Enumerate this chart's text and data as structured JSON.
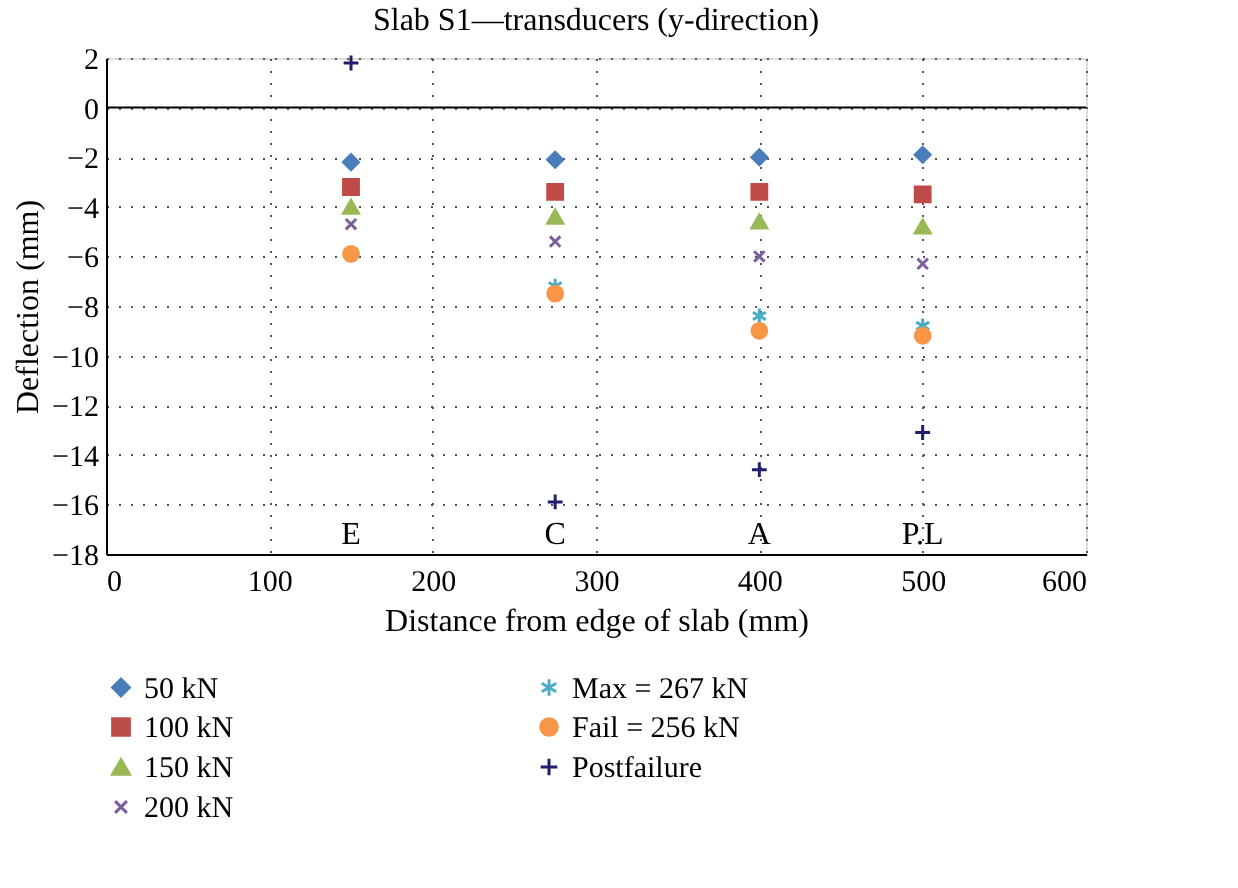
{
  "chart_data": {
    "type": "scatter",
    "title": "Slab S1—transducers (y-direction)",
    "xlabel": "Distance from edge of slab (mm)",
    "ylabel": "Deflection (mm)",
    "x": [
      150,
      275,
      400,
      500
    ],
    "series": [
      {
        "name": "50 kN",
        "color": "#4a7ebb",
        "marker": "diamond",
        "values": [
          -2.2,
          -2.1,
          -2.0,
          -1.9
        ]
      },
      {
        "name": "100 kN",
        "color": "#be4b48",
        "marker": "square",
        "values": [
          -3.2,
          -3.4,
          -3.4,
          -3.5
        ]
      },
      {
        "name": "150 kN",
        "color": "#98b954",
        "marker": "triangle",
        "values": [
          -4.0,
          -4.4,
          -4.6,
          -4.8
        ]
      },
      {
        "name": "200 kN",
        "color": "#7d5fa0",
        "marker": "x",
        "values": [
          -4.7,
          -5.4,
          -6.0,
          -6.3
        ]
      },
      {
        "name": "Max = 267 kN",
        "color": "#4bacc6",
        "marker": "cross",
        "values": [
          null,
          -7.2,
          -8.4,
          -8.8
        ]
      },
      {
        "name": "Fail = 256 kN",
        "color": "#f79646",
        "marker": "circle",
        "values": [
          -5.9,
          -7.5,
          -9.0,
          -9.2
        ]
      },
      {
        "name": "Postfailure",
        "color": "#1f1f6e",
        "marker": "plus",
        "values": [
          1.8,
          -15.9,
          -14.6,
          -13.1
        ]
      }
    ],
    "xlim": [
      0,
      600
    ],
    "xticks": [
      0,
      100,
      200,
      300,
      400,
      500,
      600
    ],
    "ylim": [
      -18,
      2
    ],
    "yticks": [
      2,
      0,
      -2,
      -4,
      -6,
      -8,
      -10,
      -12,
      -14,
      -16,
      -18
    ],
    "annotations": [
      "E",
      "C",
      "A",
      "P.L"
    ],
    "grid": true,
    "legend": "bottom"
  }
}
